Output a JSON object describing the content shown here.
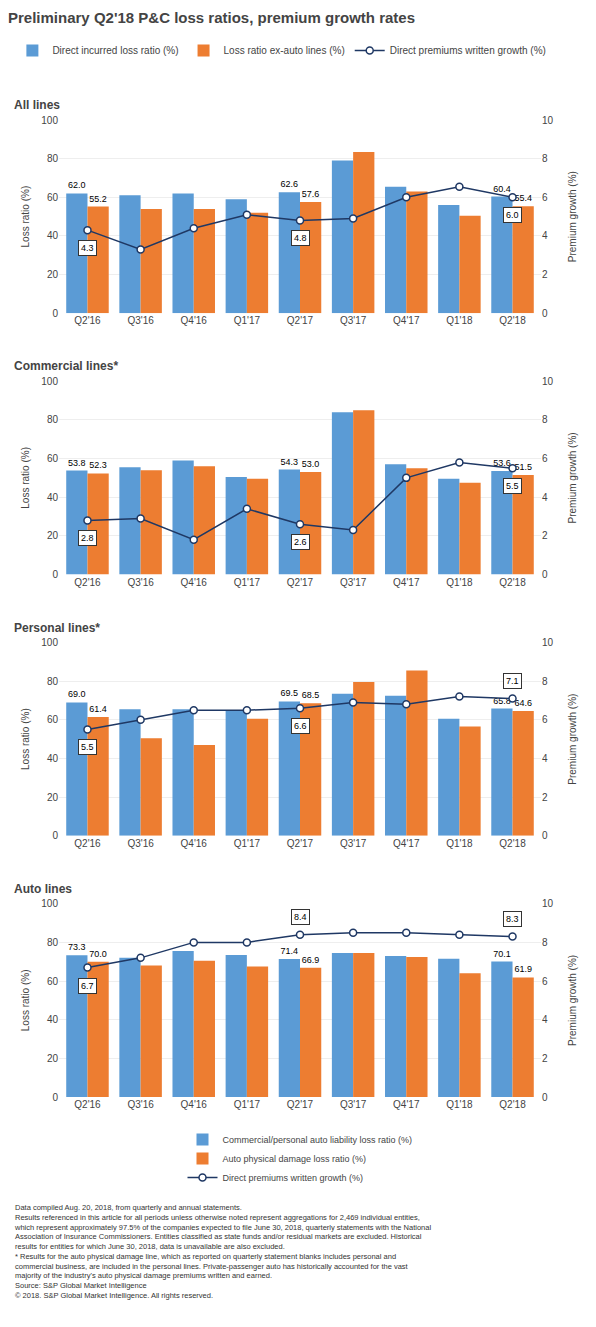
{
  "title": "Preliminary Q2'18 P&C loss ratios, premium growth rates",
  "footnote": "Data compiled Aug. 20, 2018, from quarterly and annual statements.\nResults referenced in this article for all periods unless otherwise noted represent aggregations for 2,469 individual entities,\nwhich represent approximately 97.5% of the companies expected to file June 30, 2018, quarterly statements with the National\nAssociation of Insurance Commissioners. Entities classified as state funds and/or residual markets are excluded. Historical\nresults for entities for which June 30, 2018, data is unavailable are also excluded.\n* Results for the auto physical damage line, which as reported on quarterly statement blanks includes personal and\ncommercial business, are included in the personal lines. Private-passenger auto has historically accounted for the vast\nmajority of the industry's auto physical damage premiums written and earned.\nSource: S&P Global Market Intelligence\n© 2018. S&P Global Market Intelligence. All rights reserved.",
  "chart_data": [
    {
      "type": "bar",
      "title": "All lines",
      "categories": [
        "Q2'16",
        "Q3'16",
        "Q4'16",
        "Q1'17",
        "Q2'17",
        "Q3'17",
        "Q4'17",
        "Q1'18",
        "Q2'18"
      ],
      "series": [
        {
          "name": "Direct incurred loss ratio (%)",
          "color": "#5B9BD5",
          "values": [
            62.0,
            61.0,
            62.0,
            59.0,
            62.6,
            79.0,
            65.5,
            56.0,
            60.4
          ],
          "value_labels": [
            "62.0",
            null,
            null,
            null,
            "62.6",
            null,
            null,
            null,
            "60.4"
          ]
        },
        {
          "name": "Loss ratio ex-auto lines (%)",
          "color": "#ED7D31",
          "values": [
            55.2,
            54.0,
            54.0,
            52.0,
            57.6,
            83.5,
            63.0,
            50.5,
            55.4
          ],
          "value_labels": [
            "55.2",
            null,
            null,
            null,
            "57.6",
            null,
            null,
            null,
            "55.4"
          ]
        },
        {
          "name": "Direct premiums written growth (%)",
          "type": "line",
          "axis": "y2",
          "color": "#1F3864",
          "marker": "circle",
          "values": [
            4.3,
            3.3,
            4.4,
            5.1,
            4.8,
            4.9,
            6.0,
            6.55,
            6.0
          ],
          "value_labels": [
            "4.3",
            null,
            null,
            null,
            "4.8",
            null,
            null,
            null,
            "6.0"
          ]
        }
      ],
      "ylim": [
        0,
        100
      ],
      "yticks": [
        0,
        20,
        40,
        60,
        80,
        100
      ],
      "y2lim": [
        0,
        10
      ],
      "y2ticks": [
        0,
        2,
        4,
        6,
        8,
        10
      ],
      "ylabel": "Loss ratio (%)",
      "y2label": "Premium growth (%)",
      "grid": true,
      "legend": "top"
    },
    {
      "type": "bar",
      "title": "Commercial lines*",
      "categories": [
        "Q2'16",
        "Q3'16",
        "Q4'16",
        "Q1'17",
        "Q2'17",
        "Q3'17",
        "Q4'17",
        "Q1'18",
        "Q2'18"
      ],
      "series": [
        {
          "name": "Direct incurred loss ratio (%)",
          "color": "#5B9BD5",
          "values": [
            53.8,
            55.5,
            59.0,
            50.5,
            54.3,
            84.0,
            57.0,
            49.5,
            53.6
          ],
          "value_labels": [
            "53.8",
            null,
            null,
            null,
            "54.3",
            null,
            null,
            null,
            "53.6"
          ]
        },
        {
          "name": "Loss ratio ex-auto lines (%)",
          "color": "#ED7D31",
          "values": [
            52.3,
            54.0,
            56.0,
            49.5,
            53.0,
            85.0,
            55.0,
            47.5,
            51.5
          ],
          "value_labels": [
            "52.3",
            null,
            null,
            null,
            "53.0",
            null,
            null,
            null,
            "51.5"
          ]
        },
        {
          "name": "Direct premiums written growth (%)",
          "type": "line",
          "axis": "y2",
          "color": "#1F3864",
          "marker": "circle",
          "values": [
            2.8,
            2.9,
            1.8,
            3.4,
            2.6,
            2.3,
            5.0,
            5.8,
            5.5
          ],
          "value_labels": [
            "2.8",
            null,
            null,
            null,
            "2.6",
            null,
            null,
            null,
            "5.5"
          ]
        }
      ],
      "ylim": [
        0,
        100
      ],
      "yticks": [
        0,
        20,
        40,
        60,
        80,
        100
      ],
      "y2lim": [
        0,
        10
      ],
      "y2ticks": [
        0,
        2,
        4,
        6,
        8,
        10
      ],
      "ylabel": "Loss ratio (%)",
      "y2label": "Premium growth (%)",
      "grid": true
    },
    {
      "type": "bar",
      "title": "Personal lines*",
      "categories": [
        "Q2'16",
        "Q3'16",
        "Q4'16",
        "Q1'17",
        "Q2'17",
        "Q3'17",
        "Q4'17",
        "Q1'18",
        "Q2'18"
      ],
      "series": [
        {
          "name": "Direct incurred loss ratio (%)",
          "color": "#5B9BD5",
          "values": [
            69.0,
            65.5,
            65.5,
            65.0,
            69.5,
            73.5,
            72.5,
            60.5,
            65.8
          ],
          "value_labels": [
            "69.0",
            null,
            null,
            null,
            "69.5",
            null,
            null,
            null,
            "65.8"
          ]
        },
        {
          "name": "Loss ratio ex-auto lines (%)",
          "color": "#ED7D31",
          "values": [
            61.4,
            50.5,
            47.0,
            60.5,
            68.5,
            79.5,
            85.5,
            56.5,
            64.6
          ],
          "value_labels": [
            "61.4",
            null,
            null,
            null,
            "68.5",
            null,
            null,
            null,
            "64.6"
          ]
        },
        {
          "name": "Direct premiums written growth (%)",
          "type": "line",
          "axis": "y2",
          "color": "#1F3864",
          "marker": "circle",
          "values": [
            5.5,
            6.0,
            6.5,
            6.5,
            6.6,
            6.9,
            6.8,
            7.2,
            7.1
          ],
          "value_labels": [
            "5.5",
            null,
            null,
            null,
            "6.6",
            null,
            null,
            null,
            "7.1"
          ]
        }
      ],
      "ylim": [
        0,
        100
      ],
      "yticks": [
        0,
        20,
        40,
        60,
        80,
        100
      ],
      "y2lim": [
        0,
        10
      ],
      "y2ticks": [
        0,
        2,
        4,
        6,
        8,
        10
      ],
      "ylabel": "Loss ratio (%)",
      "y2label": "Premium growth (%)",
      "grid": true
    },
    {
      "type": "bar",
      "title": "Auto lines",
      "categories": [
        "Q2'16",
        "Q3'16",
        "Q4'16",
        "Q1'17",
        "Q2'17",
        "Q3'17",
        "Q4'17",
        "Q1'18",
        "Q2'18"
      ],
      "series": [
        {
          "name": "Commercial/personal auto liability loss ratio (%)",
          "color": "#5B9BD5",
          "values": [
            73.3,
            72.0,
            75.5,
            73.5,
            71.4,
            74.5,
            73.0,
            71.5,
            70.1
          ],
          "value_labels": [
            "73.3",
            null,
            null,
            null,
            "71.4",
            null,
            null,
            null,
            "70.1"
          ]
        },
        {
          "name": "Auto physical damage loss ratio (%)",
          "color": "#ED7D31",
          "values": [
            70.0,
            68.0,
            70.5,
            67.5,
            66.9,
            74.5,
            72.5,
            64.0,
            61.9
          ],
          "value_labels": [
            "70.0",
            null,
            null,
            null,
            "66.9",
            null,
            null,
            null,
            "61.9"
          ]
        },
        {
          "name": "Direct premiums written growth (%)",
          "type": "line",
          "axis": "y2",
          "color": "#1F3864",
          "marker": "circle",
          "values": [
            6.7,
            7.2,
            8.0,
            8.0,
            8.4,
            8.5,
            8.5,
            8.4,
            8.3
          ],
          "value_labels": [
            "6.7",
            null,
            null,
            null,
            "8.4",
            null,
            null,
            null,
            "8.3"
          ]
        }
      ],
      "ylim": [
        0,
        100
      ],
      "yticks": [
        0,
        20,
        40,
        60,
        80,
        100
      ],
      "y2lim": [
        0,
        10
      ],
      "y2ticks": [
        0,
        2,
        4,
        6,
        8,
        10
      ],
      "ylabel": "Loss ratio (%)",
      "y2label": "Premium growth (%)",
      "grid": true,
      "legend": "bottom"
    }
  ]
}
